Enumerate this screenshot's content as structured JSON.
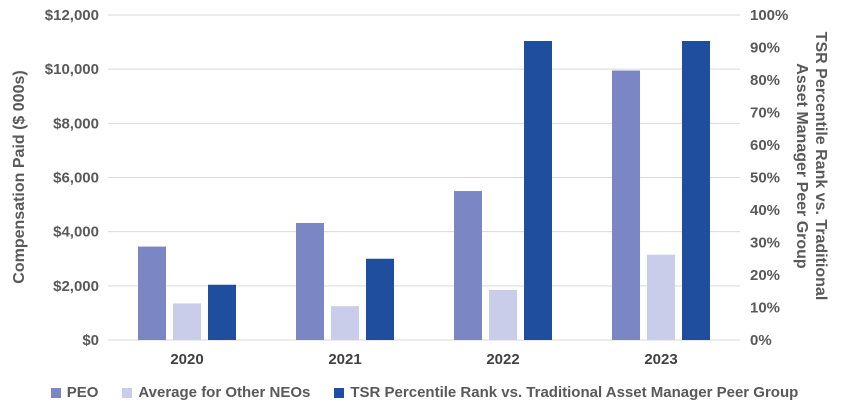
{
  "chart_data": {
    "type": "bar",
    "categories": [
      "2020",
      "2021",
      "2022",
      "2023"
    ],
    "series": [
      {
        "name": "PEO",
        "axis": "left",
        "color": "#7B86C4",
        "values": [
          3450,
          4320,
          5500,
          9950
        ]
      },
      {
        "name": "Average for Other NEOs",
        "axis": "left",
        "color": "#C9CDE9",
        "values": [
          1350,
          1250,
          1850,
          3150
        ]
      },
      {
        "name": "TSR Percentile Rank vs. Traditional Asset Manager Peer Group",
        "axis": "right",
        "color": "#1F4E9E",
        "values": [
          17,
          25,
          92,
          92
        ]
      }
    ],
    "ylabel": "Compensation Paid ($ 000s)",
    "ylabel_right_lines": [
      "TSR Percentile Rank vs. Traditional",
      "Asset Manager Peer Group"
    ],
    "ylim": [
      0,
      12000
    ],
    "ylim_right": [
      0,
      100
    ],
    "yticks": [
      "$0",
      "$2,000",
      "$4,000",
      "$6,000",
      "$8,000",
      "$10,000",
      "$12,000"
    ],
    "yticks_right": [
      "0%",
      "10%",
      "20%",
      "30%",
      "40%",
      "50%",
      "60%",
      "70%",
      "80%",
      "90%",
      "100%"
    ],
    "grid": true,
    "legend_position": "bottom"
  }
}
